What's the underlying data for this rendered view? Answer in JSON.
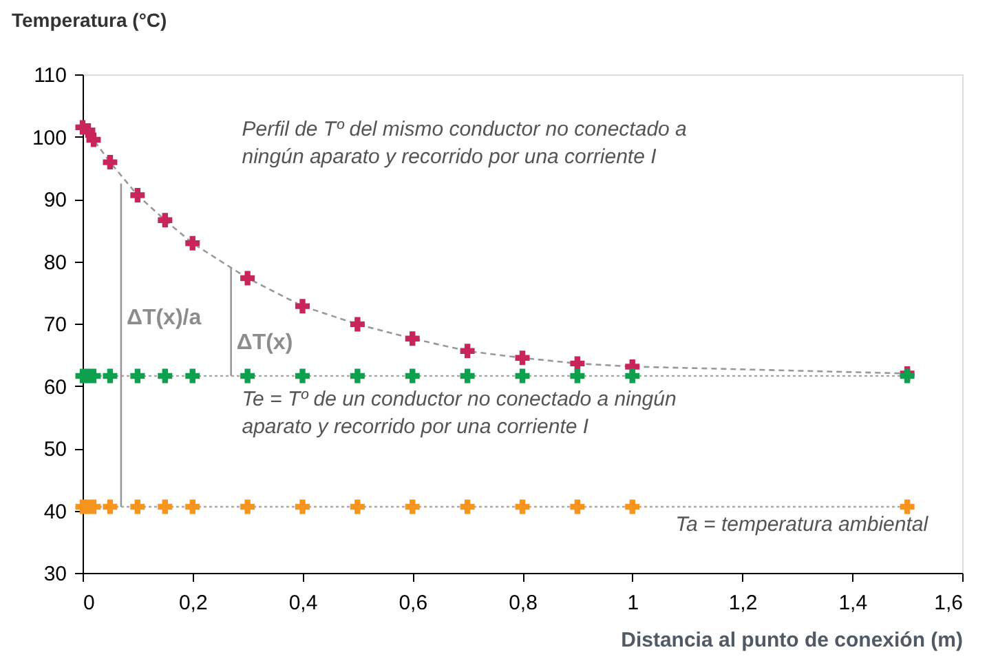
{
  "chart_data": {
    "type": "scatter",
    "xlabel": "Distancia al punto de conexión (m)",
    "ylabel": "Temperatura (°C)",
    "xlim": [
      0,
      1.6
    ],
    "ylim": [
      30,
      110
    ],
    "xticks": [
      0,
      {
        "value": 0.2,
        "label": "0,2"
      },
      {
        "value": 0.4,
        "label": "0,4"
      },
      {
        "value": 0.6,
        "label": "0,6"
      },
      {
        "value": 0.8,
        "label": "0,8"
      },
      1,
      {
        "value": 1.2,
        "label": "1,2"
      },
      {
        "value": 1.4,
        "label": "1,4"
      },
      {
        "value": 1.6,
        "label": "1,6"
      }
    ],
    "yticks": [
      30,
      40,
      50,
      60,
      70,
      80,
      90,
      100,
      110
    ],
    "grid": false,
    "series": [
      {
        "type": "line",
        "color": "#999999",
        "line_style": "dashed",
        "marker": "none",
        "x": [
          0,
          0.01,
          0.02,
          0.05,
          0.1,
          0.15,
          0.2,
          0.3,
          0.4,
          0.5,
          0.6,
          0.7,
          0.8,
          0.9,
          1.0,
          1.5
        ],
        "values": [
          101.5,
          101,
          99.5,
          95.9,
          90.6,
          86.6,
          82.9,
          77.3,
          72.8,
          69.9,
          67.6,
          65.6,
          64.5,
          63.6,
          63.1,
          62.0
        ]
      },
      {
        "type": "line",
        "color": "#aaaaaa",
        "line_style": "dotted",
        "marker": "none",
        "x": [
          0,
          1.5
        ],
        "values": [
          61.6,
          61.6
        ]
      },
      {
        "type": "line",
        "color": "#aaaaaa",
        "line_style": "dotted",
        "marker": "none",
        "x": [
          0,
          1.5
        ],
        "values": [
          40.6,
          40.6
        ]
      },
      {
        "type": "line",
        "color": "#999999",
        "line_style": "solid",
        "marker": "none",
        "x": [
          0.07,
          0.07
        ],
        "values": [
          40.6,
          92.5
        ]
      },
      {
        "type": "line",
        "color": "#999999",
        "line_style": "solid",
        "marker": "none",
        "x": [
          0.27,
          0.27
        ],
        "values": [
          61.6,
          79
        ]
      },
      {
        "color": "#c8265a",
        "marker": "cross",
        "x": [
          0,
          0.01,
          0.02,
          0.05,
          0.1,
          0.15,
          0.2,
          0.3,
          0.4,
          0.5,
          0.6,
          0.7,
          0.8,
          0.9,
          1.0,
          1.5
        ],
        "values": [
          101.5,
          101,
          99.5,
          95.9,
          90.6,
          86.6,
          82.9,
          77.3,
          72.8,
          69.9,
          67.6,
          65.6,
          64.5,
          63.6,
          63.1,
          62.0
        ]
      },
      {
        "color": "#0fa04f",
        "marker": "cross",
        "x": [
          0,
          0.01,
          0.02,
          0.05,
          0.1,
          0.15,
          0.2,
          0.3,
          0.4,
          0.5,
          0.6,
          0.7,
          0.8,
          0.9,
          1.0,
          1.5
        ],
        "values": [
          61.6,
          61.6,
          61.6,
          61.6,
          61.6,
          61.6,
          61.6,
          61.6,
          61.6,
          61.6,
          61.6,
          61.6,
          61.6,
          61.6,
          61.6,
          61.6
        ]
      },
      {
        "color": "#f7941d",
        "marker": "cross",
        "x": [
          0,
          0.01,
          0.02,
          0.05,
          0.1,
          0.15,
          0.2,
          0.3,
          0.4,
          0.5,
          0.6,
          0.7,
          0.8,
          0.9,
          1.0,
          1.5
        ],
        "values": [
          40.6,
          40.6,
          40.6,
          40.6,
          40.6,
          40.6,
          40.6,
          40.6,
          40.6,
          40.6,
          40.6,
          40.6,
          40.6,
          40.6,
          40.6,
          40.6
        ]
      }
    ],
    "annotations": [
      {
        "text": "ΔT(x)/a",
        "x": 0.08,
        "y": 71
      },
      {
        "text": "ΔT(x)",
        "x": 0.28,
        "y": 67
      },
      "Perfil de Tº del mismo conductor no conectado a\nningún aparato y recorrido por una corriente I",
      "Te = Tº de un conductor no conectado a ningún\naparato y recorrido por una corriente I",
      "Ta = temperatura ambiental"
    ]
  }
}
